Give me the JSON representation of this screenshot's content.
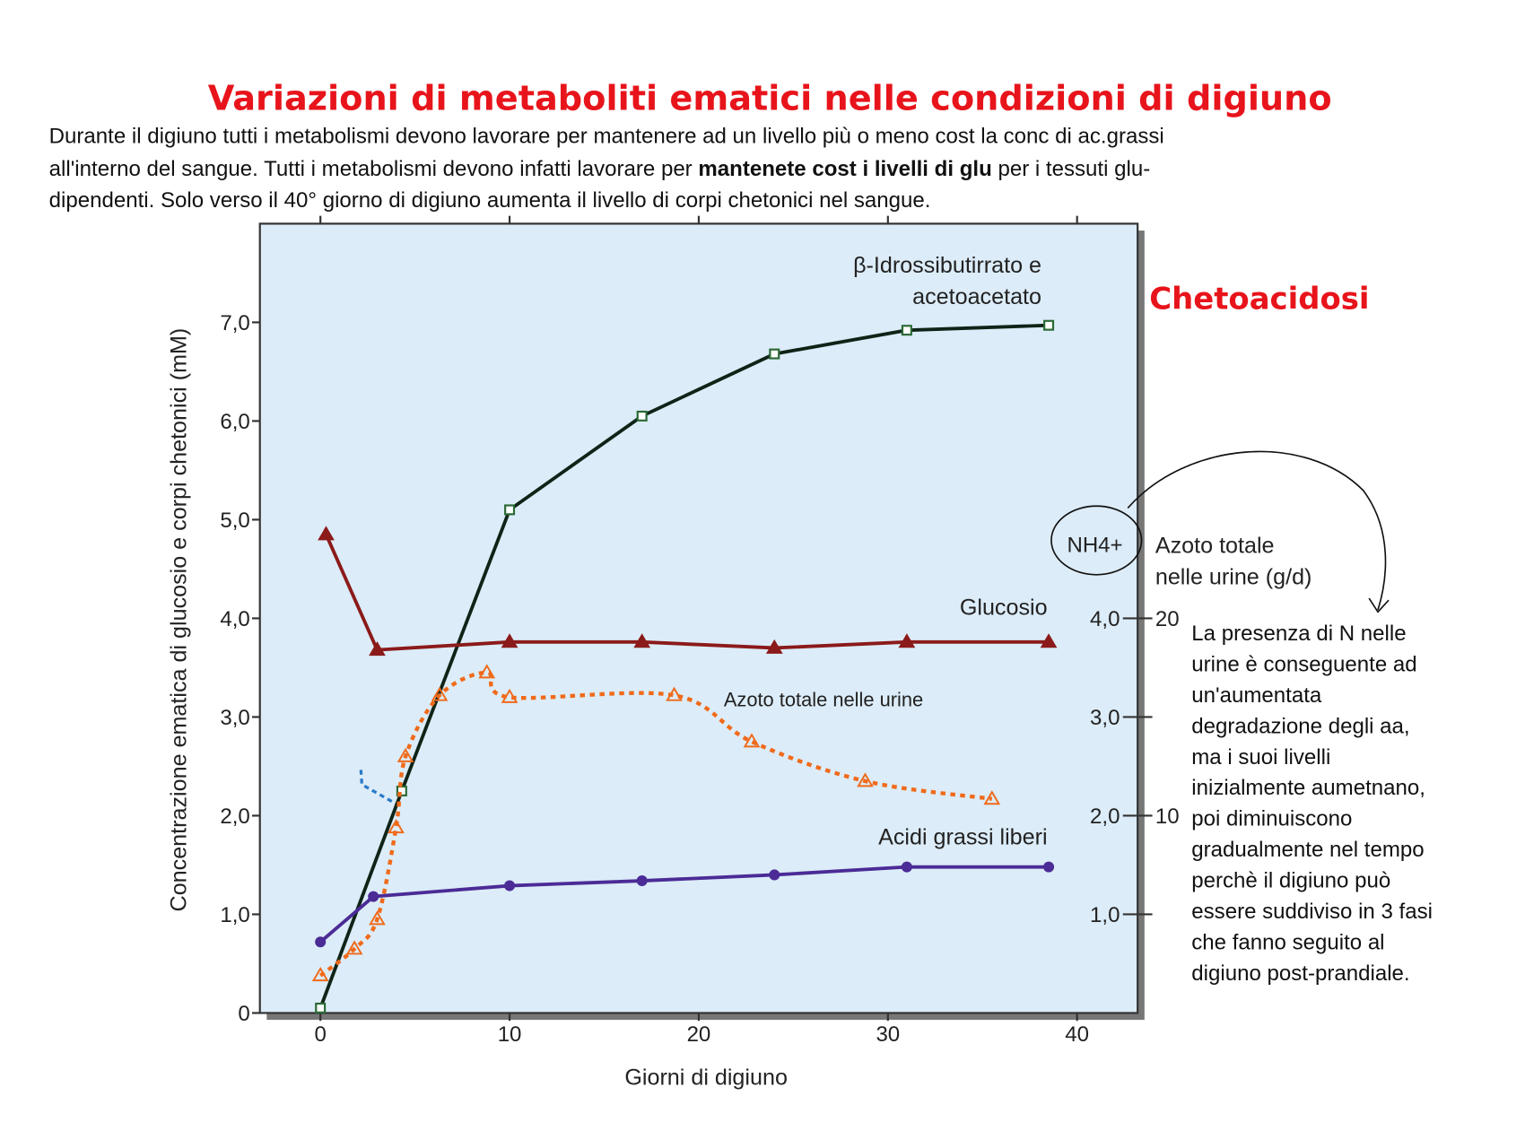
{
  "header": {
    "title": "Variazioni di metaboliti ematici nelle condizioni di digiuno"
  },
  "intro": {
    "lines": [
      [
        "Durante il digiuno tutti i metabolismi devono lavorare per mantenere ad un livello più o meno cost la conc di ac.grassi"
      ],
      [
        "all'interno del sangue. Tutti i metabolismi devono infatti lavorare per ",
        "mantenete cost i livelli di glu",
        " per i tessuti glu-"
      ],
      [
        "dipendenti. Solo verso il 40° giorno di digiuno aumenta il livello di corpi chetonici nel sangue."
      ]
    ]
  },
  "chart_data": {
    "type": "line",
    "x_label": "Giorni di digiuno",
    "y_label": "Concentrazione ematica di glucosio e corpi chetonici (mM)",
    "y2_label": "NH4+",
    "y3_label": [
      "Azoto totale",
      "nelle urine (g/d)"
    ],
    "xlim": [
      -3.2,
      43.2
    ],
    "xticks": [
      0,
      10,
      20,
      30,
      40
    ],
    "ylim": [
      0,
      8
    ],
    "yticks": [
      0,
      {
        "value": 1,
        "label": "1,0"
      },
      {
        "value": 2,
        "label": "2,0"
      },
      {
        "value": 3,
        "label": "3,0"
      },
      {
        "value": 4,
        "label": "4,0"
      },
      {
        "value": 5,
        "label": "5,0"
      },
      {
        "value": 6,
        "label": "6,0"
      },
      {
        "value": 7,
        "label": "7,0"
      }
    ],
    "y2lim": [
      0,
      8
    ],
    "y2ticks": [
      {
        "value": 1,
        "label": "1,0"
      },
      {
        "value": 2,
        "label": "2,0"
      },
      {
        "value": 3,
        "label": "3,0"
      },
      {
        "value": 4,
        "label": "4,0"
      }
    ],
    "y3lim": [
      0,
      40
    ],
    "y3ticks": [
      10,
      20
    ],
    "background": "#dcecf8",
    "series": [
      {
        "name": [
          "β-Idrossibutirrato e",
          "acetoacetato"
        ],
        "color": "#0f2417",
        "marker": "square",
        "marker_color": "#2a6a35",
        "x": [
          0,
          4.3,
          10,
          17,
          24,
          31,
          38.5
        ],
        "values": [
          0.05,
          2.25,
          5.1,
          6.05,
          6.68,
          6.92,
          6.97
        ]
      },
      {
        "name": [
          "Glucosio"
        ],
        "color": "#8b1a1a",
        "marker": "triangle",
        "marker_color": "#8b1a1a",
        "x": [
          0.3,
          3,
          10,
          17,
          24,
          31,
          38.5
        ],
        "values": [
          4.85,
          3.68,
          3.76,
          3.76,
          3.7,
          3.76,
          3.76
        ]
      },
      {
        "name": [
          "Azoto totale nelle urine"
        ],
        "color": "#f06a1a",
        "marker": "open-triangle",
        "marker_color": "#f06a1a",
        "axis": "y3",
        "dashed": true,
        "x": [
          0,
          1.8,
          3,
          4,
          4.5,
          6.3,
          8.8,
          10,
          18.7,
          22.8,
          28.8,
          35.5
        ],
        "values": [
          1.9,
          3.25,
          4.75,
          9.4,
          13,
          16.1,
          17.25,
          16,
          16.1,
          13.75,
          11.75,
          10.85
        ]
      },
      {
        "name": [
          "Acidi grassi liberi"
        ],
        "color": "#4b2b96",
        "marker": "circle",
        "marker_color": "#4b2b96",
        "x": [
          0,
          2.8,
          10,
          17,
          24,
          31,
          38.5
        ],
        "values": [
          0.72,
          1.18,
          1.29,
          1.34,
          1.4,
          1.48,
          1.48
        ]
      }
    ],
    "annotation": "Chetoacidosi"
  },
  "side_note": {
    "lines": [
      "La presenza di N nelle",
      "urine è conseguente ad",
      "un'aumentata",
      "degradazione degli aa,",
      "ma i suoi livelli",
      "inizialmente aumetnano,",
      "poi diminuiscono",
      "gradualmente nel tempo",
      "perchè il digiuno può",
      "essere suddiviso in 3 fasi",
      "che fanno seguito al",
      "digiuno post-prandiale."
    ]
  }
}
